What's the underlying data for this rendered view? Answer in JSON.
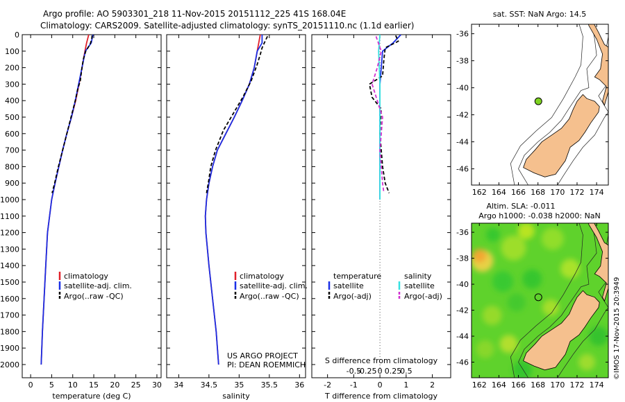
{
  "header": {
    "title_line1": "Argo profile: AO 5903301_218 11-Nov-2015 20151112_225 41S 168.04E",
    "title_line2": "Climatology: CARS2009. Satellite-adjusted climatology: synTS_20151110.nc (1.1d earlier)"
  },
  "colors": {
    "climatology": "#e0202a",
    "satellite": "#1a2fe6",
    "argo": "#000000",
    "sat_salinity": "#35e0e0",
    "argo_salinity_adj": "#d030d0",
    "land": "#f5c08e",
    "float_marker": "#7ed321"
  },
  "chart_data": [
    {
      "type": "line",
      "name": "temperature-profile",
      "xlabel": "temperature (deg C)",
      "ylabel": "depth",
      "xlim": [
        -2,
        31
      ],
      "ylim": [
        2080,
        0
      ],
      "xticks": [
        0,
        5,
        10,
        15,
        20,
        25,
        30
      ],
      "yticks": [
        0,
        100,
        200,
        300,
        400,
        500,
        600,
        700,
        800,
        900,
        1000,
        1100,
        1200,
        1300,
        1400,
        1500,
        1600,
        1700,
        1800,
        1900,
        2000
      ],
      "legend": [
        "climatology",
        "satellite-adj. clim.",
        "Argo(..raw -QC)"
      ],
      "series": [
        {
          "name": "climatology",
          "color": "#e0202a",
          "dash": "",
          "points": [
            [
              13.8,
              0
            ],
            [
              13.3,
              50
            ],
            [
              12.9,
              100
            ],
            [
              12.2,
              200
            ],
            [
              11.5,
              300
            ],
            [
              10.7,
              400
            ],
            [
              9.7,
              500
            ],
            [
              8.6,
              600
            ],
            [
              7.6,
              700
            ],
            [
              6.7,
              800
            ],
            [
              5.8,
              900
            ],
            [
              5.0,
              1000
            ],
            [
              4.5,
              1100
            ],
            [
              4.0,
              1200
            ],
            [
              3.6,
              1400
            ],
            [
              3.2,
              1600
            ],
            [
              2.8,
              1800
            ],
            [
              2.5,
              2000
            ]
          ]
        },
        {
          "name": "satellite-adj. clim.",
          "color": "#1a2fe6",
          "dash": "",
          "points": [
            [
              14.8,
              0
            ],
            [
              14.4,
              50
            ],
            [
              13.0,
              100
            ],
            [
              12.2,
              200
            ],
            [
              11.4,
              300
            ],
            [
              10.6,
              400
            ],
            [
              9.7,
              500
            ],
            [
              8.6,
              600
            ],
            [
              7.6,
              700
            ],
            [
              6.7,
              800
            ],
            [
              5.8,
              900
            ],
            [
              5.0,
              1000
            ],
            [
              4.5,
              1100
            ],
            [
              4.0,
              1200
            ],
            [
              3.6,
              1400
            ],
            [
              3.2,
              1600
            ],
            [
              2.8,
              1800
            ],
            [
              2.5,
              2000
            ]
          ]
        },
        {
          "name": "Argo(..raw -QC)",
          "color": "#000000",
          "dash": "5,3",
          "points": [
            [
              14.6,
              5
            ],
            [
              14.5,
              30
            ],
            [
              14.1,
              60
            ],
            [
              13.1,
              100
            ],
            [
              12.5,
              150
            ],
            [
              12.2,
              200
            ],
            [
              11.8,
              280
            ],
            [
              11.2,
              330
            ],
            [
              10.6,
              400
            ],
            [
              9.8,
              480
            ],
            [
              8.8,
              580
            ],
            [
              7.6,
              700
            ],
            [
              6.6,
              800
            ],
            [
              5.7,
              900
            ],
            [
              5.1,
              960
            ]
          ]
        }
      ]
    },
    {
      "type": "line",
      "name": "salinity-profile",
      "xlabel": "salinity",
      "ylabel": "depth",
      "xlim": [
        33.8,
        36.1
      ],
      "ylim": [
        2080,
        0
      ],
      "xticks": [
        34,
        34.5,
        35,
        35.5,
        36
      ],
      "legend": [
        "climatology",
        "satellite-adj. clim.",
        "Argo(..raw -QC)"
      ],
      "annotation": [
        "US ARGO PROJECT",
        "PI: DEAN ROEMMICH"
      ],
      "series": [
        {
          "name": "climatology",
          "color": "#e0202a",
          "dash": "",
          "points": [
            [
              35.35,
              0
            ],
            [
              35.3,
              100
            ],
            [
              35.25,
              200
            ],
            [
              35.17,
              300
            ],
            [
              35.05,
              400
            ],
            [
              34.92,
              500
            ],
            [
              34.78,
              600
            ],
            [
              34.64,
              700
            ],
            [
              34.56,
              800
            ],
            [
              34.5,
              900
            ],
            [
              34.46,
              1000
            ],
            [
              34.44,
              1100
            ],
            [
              34.45,
              1200
            ],
            [
              34.5,
              1400
            ],
            [
              34.56,
              1600
            ],
            [
              34.62,
              1800
            ],
            [
              34.66,
              2000
            ]
          ]
        },
        {
          "name": "satellite-adj. clim.",
          "color": "#1a2fe6",
          "dash": "",
          "points": [
            [
              35.38,
              0
            ],
            [
              35.38,
              50
            ],
            [
              35.3,
              100
            ],
            [
              35.25,
              200
            ],
            [
              35.17,
              300
            ],
            [
              35.05,
              400
            ],
            [
              34.92,
              500
            ],
            [
              34.78,
              600
            ],
            [
              34.64,
              700
            ],
            [
              34.56,
              800
            ],
            [
              34.5,
              900
            ],
            [
              34.46,
              1000
            ],
            [
              34.44,
              1100
            ],
            [
              34.45,
              1200
            ],
            [
              34.5,
              1400
            ],
            [
              34.56,
              1600
            ],
            [
              34.62,
              1800
            ],
            [
              34.66,
              2000
            ]
          ]
        },
        {
          "name": "Argo(..raw -QC)",
          "color": "#000000",
          "dash": "5,3",
          "points": [
            [
              35.47,
              10
            ],
            [
              35.43,
              40
            ],
            [
              35.38,
              80
            ],
            [
              35.35,
              120
            ],
            [
              35.3,
              180
            ],
            [
              35.2,
              280
            ],
            [
              35.06,
              380
            ],
            [
              34.9,
              480
            ],
            [
              34.74,
              580
            ],
            [
              34.61,
              700
            ],
            [
              34.53,
              800
            ],
            [
              34.49,
              900
            ],
            [
              34.46,
              960
            ]
          ]
        }
      ]
    },
    {
      "type": "line",
      "name": "difference-profile",
      "xlabel": "T difference from climatology",
      "xlabel_top": "S difference from climatology",
      "ylabel": "depth",
      "xlim": [
        -2.6,
        2.7
      ],
      "ylim": [
        2080,
        0
      ],
      "xticks": [
        -2,
        -1,
        0,
        1,
        2
      ],
      "xticks_top": [
        -0.5,
        -0.25,
        0,
        0.25,
        0.5
      ],
      "legend_headers": [
        "temperature",
        "salinity"
      ],
      "legend": [
        "satellite",
        "Argo(-adj)",
        "satellite",
        "Argo(-adj)"
      ],
      "series": [
        {
          "name": "T satellite",
          "color": "#1a2fe6",
          "dash": "",
          "points": [
            [
              0.8,
              0
            ],
            [
              0.5,
              50
            ],
            [
              0.1,
              100
            ],
            [
              0,
              300
            ],
            [
              0,
              1000
            ]
          ]
        },
        {
          "name": "T Argo(-adj)",
          "color": "#000000",
          "dash": "5,3",
          "points": [
            [
              0.6,
              5
            ],
            [
              0.7,
              40
            ],
            [
              0.2,
              80
            ],
            [
              0.15,
              150
            ],
            [
              0.1,
              250
            ],
            [
              -0.4,
              300
            ],
            [
              -0.3,
              380
            ],
            [
              0.05,
              450
            ],
            [
              0,
              600
            ],
            [
              0.1,
              800
            ],
            [
              0.2,
              900
            ],
            [
              0.35,
              960
            ]
          ]
        },
        {
          "name": "S satellite",
          "color": "#35e0e0",
          "dash": "",
          "points": [
            [
              0,
              0
            ],
            [
              -0.05,
              100
            ],
            [
              0,
              300
            ],
            [
              0,
              600
            ],
            [
              0,
              1000
            ]
          ]
        },
        {
          "name": "S Argo(-adj)",
          "color": "#d030d0",
          "dash": "5,3",
          "points": [
            [
              -0.15,
              10
            ],
            [
              0.05,
              100
            ],
            [
              -0.1,
              200
            ],
            [
              -0.3,
              300
            ],
            [
              -0.1,
              400
            ],
            [
              0.1,
              500
            ],
            [
              0,
              700
            ],
            [
              0.1,
              900
            ],
            [
              0.15,
              960
            ]
          ]
        }
      ]
    },
    {
      "type": "scatter",
      "name": "map-sst",
      "title": "sat. SST: NaN Argo: 14.5",
      "xlim": [
        161.2,
        175.2
      ],
      "ylim": [
        -47.2,
        -35.3
      ],
      "xticks": [
        162,
        164,
        166,
        168,
        170,
        172,
        174
      ],
      "yticks": [
        -36,
        -38,
        -40,
        -42,
        -44,
        -46
      ],
      "float": {
        "lon": 168.04,
        "lat": -41.0
      }
    },
    {
      "type": "heatmap",
      "name": "map-sla",
      "title_line1": "Altim. SLA: -0.011",
      "title_line2": "Argo h1000: -0.038 h2000: NaN",
      "xlim": [
        161.2,
        175.2
      ],
      "ylim": [
        -47.2,
        -35.3
      ],
      "xticks": [
        162,
        164,
        166,
        168,
        170,
        172,
        174
      ],
      "yticks": [
        -36,
        -38,
        -40,
        -42,
        -44,
        -46
      ],
      "float": {
        "lon": 168.04,
        "lat": -41.0
      }
    }
  ],
  "footer": {
    "stamp": "©IMOS 17-Nov-2015 20:3949"
  }
}
